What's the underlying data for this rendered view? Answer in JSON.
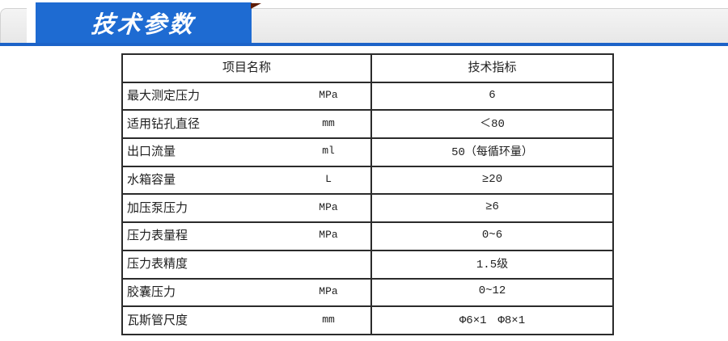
{
  "banner": {
    "title": "技术参数"
  },
  "colors": {
    "accent_blue": "#1e6bd2",
    "underline_blue": "#1c63c8",
    "fold_red": "#5e1c05",
    "strip_gray": "#ebebeb",
    "table_border": "#2b2b2b"
  },
  "table": {
    "headers": [
      "项目名称",
      "技术指标"
    ],
    "rows": [
      {
        "name": "最大测定压力",
        "unit": "MPa",
        "value": "6"
      },
      {
        "name": "适用钻孔直径",
        "unit": "mm",
        "value": "＜80"
      },
      {
        "name": "出口流量",
        "unit": "ml",
        "value": "50（每循环量）"
      },
      {
        "name": "水箱容量",
        "unit": "L",
        "value": "≥20"
      },
      {
        "name": "加压泵压力",
        "unit": "MPa",
        "value": "≥6"
      },
      {
        "name": "压力表量程",
        "unit": "MPa",
        "value": "0~6"
      },
      {
        "name": "压力表精度",
        "unit": "",
        "value": "1.5级"
      },
      {
        "name": "胶囊压力",
        "unit": "MPa",
        "value": "0~12"
      },
      {
        "name": "瓦斯管尺度",
        "unit": "mm",
        "value": "Φ6×1　Φ8×1"
      }
    ]
  }
}
